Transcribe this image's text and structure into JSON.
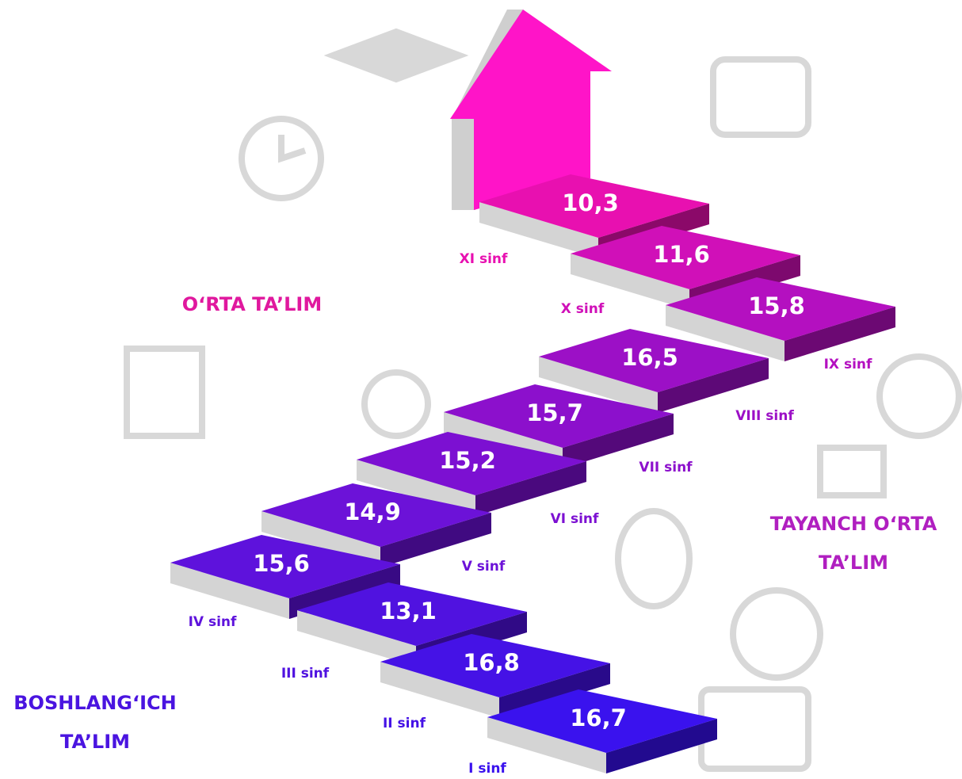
{
  "sections": [
    {
      "lines": [
        "O‘RTA TA’LIM"
      ],
      "color": "#e0189e"
    },
    {
      "lines": [
        "TAYANCH O‘RTA",
        "TA’LIM"
      ],
      "color": "#b01fc0"
    },
    {
      "lines": [
        "BOSHLANG‘ICH",
        "TA’LIM"
      ],
      "color": "#4a14e0"
    }
  ],
  "steps": [
    {
      "grade": "I sinf",
      "value": "16,7",
      "color": "#3a12ee"
    },
    {
      "grade": "II sinf",
      "value": "16,8",
      "color": "#4512e6"
    },
    {
      "grade": "III sinf",
      "value": "13,1",
      "color": "#5012e0"
    },
    {
      "grade": "IV sinf",
      "value": "15,6",
      "color": "#5e12dc"
    },
    {
      "grade": "V sinf",
      "value": "14,9",
      "color": "#6c12d8"
    },
    {
      "grade": "VI sinf",
      "value": "15,2",
      "color": "#7c10d2"
    },
    {
      "grade": "VII sinf",
      "value": "15,7",
      "color": "#8c10cc"
    },
    {
      "grade": "VIII sinf",
      "value": "16,5",
      "color": "#9c10c6"
    },
    {
      "grade": "IX sinf",
      "value": "15,8",
      "color": "#b410c0"
    },
    {
      "grade": "X sinf",
      "value": "11,6",
      "color": "#d010b8"
    },
    {
      "grade": "XI sinf",
      "value": "10,3",
      "color": "#e810b0"
    }
  ]
}
